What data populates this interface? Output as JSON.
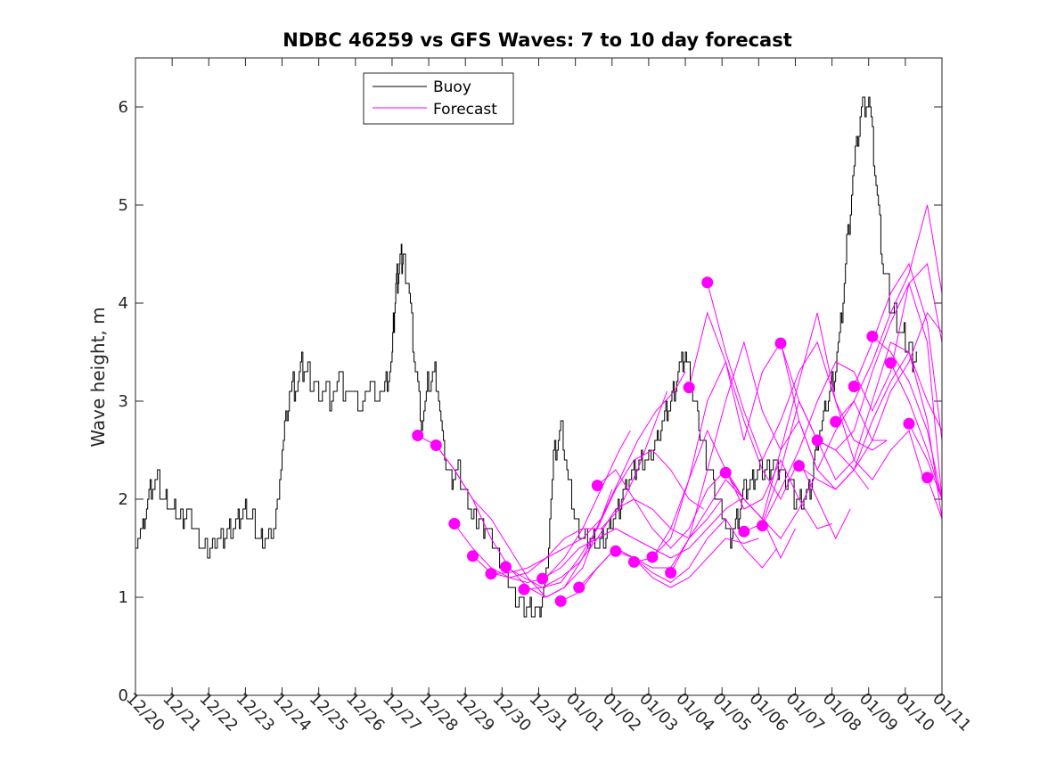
{
  "chart_data": {
    "type": "line",
    "title": "NDBC 46259 vs GFS Waves: 7 to 10 day forecast",
    "xlabel": "",
    "ylabel": "Wave height, m",
    "x_ticks": [
      "12/20",
      "12/21",
      "12/22",
      "12/23",
      "12/24",
      "12/25",
      "12/26",
      "12/27",
      "12/28",
      "12/29",
      "12/30",
      "12/31",
      "01/01",
      "01/02",
      "01/03",
      "01/04",
      "01/05",
      "01/06",
      "01/07",
      "01/08",
      "01/09",
      "01/10",
      "01/11"
    ],
    "xlim": [
      0,
      22
    ],
    "ylim": [
      0,
      6.5
    ],
    "y_ticks": [
      0,
      1,
      2,
      3,
      4,
      5,
      6
    ],
    "grid": false,
    "legend": {
      "position": "top-center",
      "entries": [
        "Buoy",
        "Forecast"
      ]
    },
    "colors": {
      "buoy": "#000000",
      "forecast": "#ff00ff"
    },
    "buoy": {
      "name": "Buoy",
      "x": [
        0,
        0.2,
        0.4,
        0.6,
        0.8,
        1.0,
        1.2,
        1.4,
        1.6,
        1.8,
        2.0,
        2.2,
        2.4,
        2.6,
        2.8,
        3.0,
        3.2,
        3.4,
        3.6,
        3.8,
        4.0,
        4.2,
        4.4,
        4.6,
        4.8,
        5.0,
        5.3,
        5.6,
        6.0,
        6.4,
        6.8,
        7.0,
        7.1,
        7.2,
        7.3,
        7.4,
        7.6,
        7.8,
        8.0,
        8.2,
        8.4,
        8.6,
        8.8,
        9.0,
        9.2,
        9.4,
        9.6,
        9.8,
        10.0,
        10.2,
        10.4,
        10.6,
        10.8,
        11.0,
        11.2,
        11.4,
        11.6,
        11.8,
        12.0,
        12.2,
        12.4,
        12.6,
        12.8,
        13.0,
        13.2,
        13.4,
        13.6,
        13.8,
        14.0,
        14.2,
        14.4,
        14.6,
        14.8,
        15.0,
        15.2,
        15.4,
        15.6,
        15.8,
        16.0,
        16.2,
        16.4,
        16.6,
        16.8,
        17.0,
        17.2,
        17.4,
        17.6,
        17.8,
        18.0,
        18.2,
        18.4,
        18.6,
        18.8,
        19.0,
        19.2,
        19.4,
        19.6,
        19.8,
        20.0,
        20.2,
        20.4,
        20.6,
        20.8,
        21.0,
        21.2,
        21.35
      ],
      "values": [
        1.6,
        1.7,
        2.1,
        2.2,
        2.0,
        1.9,
        1.8,
        1.9,
        1.7,
        1.5,
        1.5,
        1.6,
        1.6,
        1.7,
        1.8,
        1.9,
        1.8,
        1.6,
        1.6,
        1.7,
        2.5,
        3.1,
        3.2,
        3.4,
        3.2,
        3.1,
        3.1,
        3.2,
        3.0,
        3.1,
        3.1,
        3.5,
        4.2,
        4.4,
        4.5,
        4.3,
        3.5,
        2.8,
        3.2,
        3.3,
        2.5,
        2.2,
        2.3,
        2.1,
        1.8,
        1.8,
        1.7,
        1.5,
        1.3,
        1.2,
        1.0,
        0.9,
        0.9,
        0.85,
        1.2,
        2.4,
        2.8,
        2.2,
        1.8,
        1.6,
        1.6,
        1.55,
        1.6,
        1.8,
        1.9,
        2.2,
        2.3,
        2.4,
        2.4,
        2.6,
        2.8,
        3.0,
        3.3,
        3.5,
        3.1,
        2.7,
        2.4,
        2.1,
        1.9,
        1.6,
        1.8,
        2.1,
        2.2,
        2.3,
        2.3,
        2.4,
        2.3,
        2.2,
        2.0,
        2.0,
        2.1,
        2.6,
        2.9,
        3.2,
        3.6,
        4.6,
        5.4,
        6.0,
        6.1,
        5.2,
        4.4,
        4.0,
        3.8,
        3.6,
        3.5,
        3.4
      ]
    },
    "forecasts": [
      {
        "name": "Forecast",
        "x": [
          7.7,
          8.2,
          8.7,
          9.2,
          9.7,
          10.2,
          10.7,
          11.2,
          11.7,
          12.2,
          12.5
        ],
        "values": [
          2.65,
          2.55,
          2.3,
          2.0,
          1.8,
          1.5,
          1.2,
          1.0,
          1.1,
          1.3,
          1.6
        ]
      },
      {
        "name": "Forecast",
        "x": [
          8.2,
          8.7,
          9.2,
          9.7,
          10.2,
          10.7,
          11.2,
          11.7,
          12.2,
          12.7,
          13.0
        ],
        "values": [
          2.55,
          2.3,
          2.0,
          1.6,
          1.3,
          1.1,
          1.0,
          1.1,
          1.4,
          1.8,
          2.1
        ]
      },
      {
        "name": "Forecast",
        "x": [
          8.7,
          9.2,
          9.7,
          10.2,
          10.7,
          11.2,
          11.7,
          12.2,
          12.7,
          13.2,
          13.5
        ],
        "values": [
          1.75,
          1.5,
          1.3,
          1.2,
          1.15,
          1.2,
          1.4,
          1.7,
          2.1,
          2.5,
          2.7
        ]
      },
      {
        "name": "Forecast",
        "x": [
          9.2,
          9.7,
          10.2,
          10.7,
          11.2,
          11.7,
          12.2,
          12.7,
          13.2,
          13.7,
          14.2,
          14.5
        ],
        "values": [
          1.42,
          1.25,
          1.2,
          1.25,
          1.4,
          1.6,
          1.7,
          1.7,
          1.9,
          2.3,
          2.8,
          3.1
        ]
      },
      {
        "name": "Forecast",
        "x": [
          9.7,
          10.2,
          10.7,
          11.2,
          11.7,
          12.2,
          12.7,
          13.2,
          13.7,
          14.2,
          14.7,
          15.0
        ],
        "values": [
          1.24,
          1.25,
          1.3,
          1.4,
          1.5,
          1.6,
          1.8,
          2.2,
          2.6,
          2.9,
          3.1,
          3.3
        ]
      },
      {
        "name": "Forecast",
        "x": [
          10.1,
          10.6,
          11.1,
          11.6,
          12.1,
          12.6,
          13.1,
          13.6,
          14.1,
          14.6,
          15.1,
          15.5
        ],
        "values": [
          1.31,
          1.2,
          1.1,
          1.15,
          1.4,
          1.7,
          2.1,
          2.4,
          2.5,
          2.3,
          2.0,
          1.9
        ]
      },
      {
        "name": "Forecast",
        "x": [
          10.6,
          11.1,
          11.6,
          12.1,
          12.6,
          13.1,
          13.6,
          14.1,
          14.6,
          15.1,
          15.6,
          16.0
        ],
        "values": [
          1.08,
          1.1,
          1.2,
          1.35,
          1.6,
          1.9,
          2.0,
          1.9,
          1.7,
          1.6,
          1.8,
          2.0
        ]
      },
      {
        "name": "Forecast",
        "x": [
          11.1,
          11.6,
          12.1,
          12.6,
          13.1,
          13.6,
          14.1,
          14.6,
          15.1,
          15.6,
          16.1,
          16.5
        ],
        "values": [
          1.19,
          1.3,
          1.5,
          1.6,
          1.7,
          1.6,
          1.5,
          1.4,
          1.5,
          1.7,
          1.9,
          2.0
        ]
      },
      {
        "name": "Forecast",
        "x": [
          11.6,
          12.1,
          12.6,
          13.1,
          13.6,
          14.1,
          14.6,
          15.1,
          15.6,
          16.1,
          16.6,
          17.0
        ],
        "values": [
          0.96,
          1.05,
          1.3,
          1.5,
          1.4,
          1.2,
          1.1,
          1.2,
          1.4,
          1.6,
          1.55,
          1.6
        ]
      },
      {
        "name": "Forecast",
        "x": [
          12.1,
          12.6,
          13.1,
          13.6,
          14.1,
          14.6,
          15.1,
          15.6,
          16.1,
          16.6,
          17.1,
          17.5
        ],
        "values": [
          1.1,
          1.3,
          1.5,
          1.4,
          1.25,
          1.15,
          1.3,
          1.6,
          1.8,
          1.5,
          1.3,
          1.5
        ]
      },
      {
        "name": "Forecast",
        "x": [
          12.6,
          13.1,
          13.6,
          14.1,
          14.6,
          15.1,
          15.6,
          16.1,
          16.6,
          17.1,
          17.6,
          18.0
        ],
        "values": [
          2.14,
          2.3,
          2.0,
          1.7,
          1.5,
          1.7,
          2.1,
          2.3,
          2.0,
          1.8,
          1.4,
          1.7
        ]
      },
      {
        "name": "Forecast",
        "x": [
          13.1,
          13.6,
          14.1,
          14.6,
          15.1,
          15.6,
          16.1,
          16.6,
          17.1,
          17.6,
          18.1,
          18.5
        ],
        "values": [
          1.47,
          1.4,
          1.3,
          1.3,
          1.6,
          1.9,
          2.2,
          2.0,
          1.8,
          1.6,
          1.9,
          2.2
        ]
      },
      {
        "name": "Forecast",
        "x": [
          13.6,
          14.1,
          14.6,
          15.1,
          15.6,
          16.1,
          16.6,
          17.1,
          17.6,
          18.1,
          18.6,
          19.0
        ],
        "values": [
          1.36,
          1.4,
          1.7,
          2.2,
          2.7,
          2.3,
          1.9,
          2.0,
          2.4,
          2.0,
          1.7,
          1.75
        ]
      },
      {
        "name": "Forecast",
        "x": [
          14.1,
          14.6,
          15.1,
          15.6,
          16.1,
          16.6,
          17.1,
          17.6,
          18.1,
          18.6,
          19.1,
          19.5
        ],
        "values": [
          1.41,
          1.6,
          2.2,
          3.0,
          3.4,
          2.8,
          2.3,
          2.0,
          2.4,
          2.0,
          1.6,
          1.9
        ]
      },
      {
        "name": "Forecast",
        "x": [
          14.6,
          15.1,
          15.6,
          16.1,
          16.6,
          17.1,
          17.6,
          18.1,
          18.6,
          19.1,
          19.6,
          20.0
        ],
        "values": [
          1.25,
          1.6,
          2.3,
          3.0,
          3.6,
          2.9,
          2.5,
          2.8,
          2.3,
          2.1,
          2.3,
          2.1
        ]
      },
      {
        "name": "Forecast",
        "x": [
          15.1,
          15.6,
          16.1,
          16.6,
          17.1,
          17.6,
          18.1,
          18.6,
          19.1,
          19.6,
          20.1,
          20.5
        ],
        "values": [
          3.14,
          3.9,
          3.4,
          2.6,
          3.3,
          3.6,
          2.8,
          2.3,
          2.7,
          3.0,
          2.6,
          2.6
        ]
      },
      {
        "name": "Forecast",
        "x": [
          15.6,
          16.1,
          16.6,
          17.1,
          17.6,
          18.1,
          18.6,
          19.1,
          19.6,
          20.1,
          20.5
        ],
        "values": [
          4.21,
          3.5,
          2.9,
          2.4,
          2.8,
          3.3,
          3.6,
          3.0,
          2.6,
          2.5,
          2.6
        ]
      },
      {
        "name": "Forecast",
        "x": [
          16.1,
          16.6,
          17.1,
          17.6,
          18.1,
          18.6,
          19.1,
          19.6,
          20.1,
          20.6,
          21.1,
          21.5
        ],
        "values": [
          2.27,
          2.0,
          1.8,
          2.5,
          3.2,
          3.9,
          3.0,
          2.4,
          2.2,
          2.5,
          2.7,
          2.2
        ]
      },
      {
        "name": "Forecast",
        "x": [
          16.6,
          17.1,
          17.6,
          18.1,
          18.6,
          19.1,
          19.6,
          20.1,
          20.6,
          21.1,
          21.6,
          22.0
        ],
        "values": [
          1.67,
          1.75,
          2.3,
          3.0,
          2.6,
          2.2,
          2.4,
          3.0,
          3.6,
          3.5,
          2.8,
          1.8
        ]
      },
      {
        "name": "Forecast",
        "x": [
          17.1,
          17.6,
          18.1,
          18.6,
          19.1,
          19.6,
          20.1,
          20.6,
          21.1,
          21.6,
          22.0
        ],
        "values": [
          1.73,
          2.1,
          2.5,
          3.0,
          3.4,
          3.3,
          2.9,
          3.3,
          4.2,
          3.6,
          2.0
        ]
      },
      {
        "name": "Forecast",
        "x": [
          17.6,
          18.1,
          18.6,
          19.1,
          19.6,
          20.1,
          20.6,
          21.1,
          21.6,
          22.0
        ],
        "values": [
          3.59,
          3.0,
          2.6,
          2.5,
          2.3,
          2.6,
          3.1,
          3.4,
          3.9,
          3.7
        ]
      },
      {
        "name": "Forecast",
        "x": [
          18.1,
          18.6,
          19.1,
          19.6,
          20.1,
          20.6,
          21.1,
          21.6,
          22.0
        ],
        "values": [
          2.34,
          2.2,
          2.1,
          2.3,
          2.8,
          3.2,
          3.5,
          3.0,
          2.7
        ]
      },
      {
        "name": "Forecast",
        "x": [
          18.6,
          19.1,
          19.6,
          20.1,
          20.6,
          21.1,
          21.6,
          22.0
        ],
        "values": [
          2.6,
          2.5,
          2.7,
          3.3,
          3.8,
          4.2,
          4.4,
          3.6
        ]
      },
      {
        "name": "Forecast",
        "x": [
          19.1,
          19.6,
          20.1,
          20.6,
          21.1,
          21.6,
          22.0
        ],
        "values": [
          2.79,
          3.0,
          3.4,
          3.9,
          4.3,
          5.0,
          4.1
        ]
      },
      {
        "name": "Forecast",
        "x": [
          19.6,
          20.1,
          20.6,
          21.1,
          21.6,
          22.0
        ],
        "values": [
          3.15,
          3.6,
          4.1,
          4.4,
          3.8,
          2.6
        ]
      },
      {
        "name": "Forecast",
        "x": [
          20.1,
          20.6,
          21.1,
          21.6,
          22.0
        ],
        "values": [
          3.66,
          3.5,
          3.2,
          2.7,
          2.0
        ]
      },
      {
        "name": "Forecast",
        "x": [
          20.6,
          21.1,
          21.6,
          22.0
        ],
        "values": [
          3.39,
          3.0,
          2.5,
          2.0
        ]
      },
      {
        "name": "Forecast",
        "x": [
          21.1,
          21.6,
          22.0
        ],
        "values": [
          2.77,
          2.4,
          2.0
        ]
      },
      {
        "name": "Forecast",
        "x": [
          21.6,
          22.0
        ],
        "values": [
          2.22,
          1.8
        ]
      }
    ],
    "forecast_points": {
      "x": [
        7.7,
        8.2,
        8.7,
        9.2,
        9.7,
        10.1,
        10.6,
        11.1,
        11.6,
        12.1,
        12.6,
        13.1,
        13.6,
        14.1,
        14.6,
        15.1,
        15.6,
        16.1,
        16.6,
        17.1,
        17.6,
        18.1,
        18.6,
        19.1,
        19.6,
        20.1,
        20.6,
        21.1,
        21.6
      ],
      "values": [
        2.65,
        2.55,
        1.75,
        1.42,
        1.24,
        1.31,
        1.08,
        1.19,
        0.96,
        1.1,
        2.14,
        1.47,
        1.36,
        1.41,
        1.25,
        3.14,
        4.21,
        2.27,
        1.67,
        1.73,
        3.59,
        2.34,
        2.6,
        2.79,
        3.15,
        3.66,
        3.39,
        2.77,
        2.22
      ]
    }
  }
}
